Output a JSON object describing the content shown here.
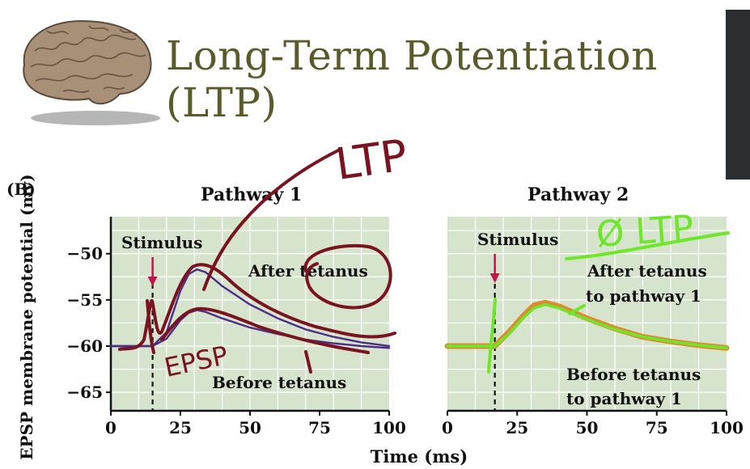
{
  "slide": {
    "title_line1": "Long-Term Potentiation",
    "title_line2": "(LTP)",
    "panel_label": "(B)"
  },
  "annotations": {
    "ltp_handwritten": "LTP",
    "epsp_handwritten": "EPSP",
    "no_ltp_handwritten": "Ø LTP"
  },
  "colors": {
    "title": "#5b5a2a",
    "plot_bg": "#d6e4cd",
    "after_curve": "#4b2f86",
    "before_curve": "#4b2f86",
    "ink_red": "#7a1320",
    "orange_curve": "#e08a2e",
    "ink_green": "#6ee62a"
  },
  "chart_data": [
    {
      "type": "line",
      "title": "Pathway 1",
      "xlabel": "Time (ms)",
      "ylabel": "EPSP membrane potential (mv)",
      "xlim": [
        0,
        100
      ],
      "ylim": [
        -67,
        -46
      ],
      "xticks": [
        0,
        25,
        50,
        75,
        100
      ],
      "yticks": [
        -50,
        -55,
        -60,
        -65
      ],
      "stimulus": {
        "x": 15,
        "label": "Stimulus"
      },
      "series": [
        {
          "name": "After tetanus",
          "x": [
            0,
            10,
            15,
            20,
            25,
            28,
            31,
            34,
            40,
            50,
            60,
            70,
            80,
            90,
            100
          ],
          "y": [
            -60,
            -60,
            -60,
            -58.5,
            -54,
            -52.2,
            -51.7,
            -52,
            -53.5,
            -55.5,
            -57,
            -58.2,
            -59,
            -59.6,
            -60
          ]
        },
        {
          "name": "Before tetanus",
          "x": [
            0,
            10,
            15,
            20,
            25,
            28,
            31,
            34,
            40,
            50,
            60,
            70,
            80,
            90,
            100
          ],
          "y": [
            -60,
            -60,
            -60,
            -59.2,
            -57.2,
            -56.4,
            -56.1,
            -56.3,
            -57,
            -58,
            -58.7,
            -59.3,
            -59.7,
            -60,
            -60.2
          ]
        }
      ]
    },
    {
      "type": "line",
      "title": "Pathway 2",
      "xlabel": "Time (ms)",
      "xlim": [
        0,
        100
      ],
      "ylim": [
        -67,
        -46
      ],
      "xticks": [
        0,
        25,
        50,
        75,
        100
      ],
      "stimulus": {
        "x": 17,
        "label": "Stimulus"
      },
      "series": [
        {
          "name": "After tetanus to pathway 1",
          "x": [
            0,
            10,
            17,
            22,
            27,
            31,
            35,
            40,
            50,
            60,
            70,
            80,
            90,
            100
          ],
          "y": [
            -60,
            -60,
            -60,
            -58.5,
            -56.8,
            -55.6,
            -55.3,
            -55.7,
            -57,
            -58.1,
            -59,
            -59.5,
            -59.9,
            -60.2
          ]
        },
        {
          "name": "Before tetanus to pathway 1",
          "x": [
            0,
            10,
            17,
            22,
            27,
            31,
            35,
            40,
            50,
            60,
            70,
            80,
            90,
            100
          ],
          "y": [
            -60,
            -60,
            -60,
            -58.7,
            -57,
            -55.9,
            -55.5,
            -55.9,
            -57.1,
            -58.2,
            -59,
            -59.5,
            -59.9,
            -60.2
          ]
        }
      ]
    }
  ]
}
